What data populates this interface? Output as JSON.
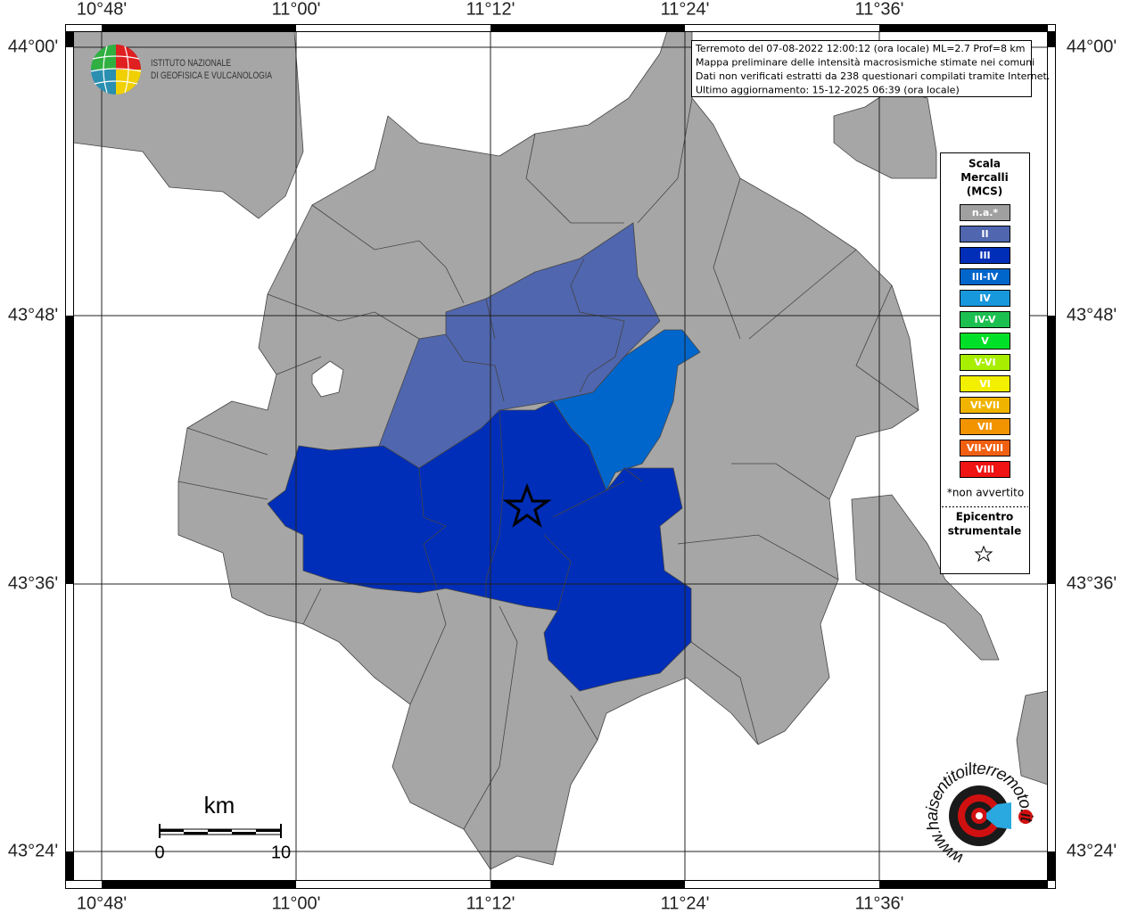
{
  "map": {
    "longitude_labels": [
      "10°48'",
      "11°00'",
      "11°12'",
      "11°24'",
      "11°36'"
    ],
    "latitude_labels": [
      "44°00'",
      "43°48'",
      "43°36'",
      "43°24'"
    ],
    "info_box": [
      "Terremoto del 07-08-2022 12:00:12 (ora locale) ML=2.7 Prof=8 km",
      "Mappa preliminare delle intensità macrosismiche stimate nei comuni",
      "Dati non verificati estratti da 238 questionari compilati tramite Internet.",
      "Ultimo aggiornamento: 15-12-2025 06:39 (ora locale)"
    ],
    "legend": {
      "title": [
        "Scala",
        "Mercalli",
        "(MCS)"
      ],
      "items": [
        {
          "label": "n.a.*",
          "color": "#a0a0a0"
        },
        {
          "label": "II",
          "color": "#5066ae"
        },
        {
          "label": "III",
          "color": "#002eb8"
        },
        {
          "label": "III-IV",
          "color": "#0066cc"
        },
        {
          "label": "IV",
          "color": "#1898dc"
        },
        {
          "label": "IV-V",
          "color": "#1cc050"
        },
        {
          "label": "V",
          "color": "#00e028"
        },
        {
          "label": "V-VI",
          "color": "#a8ee00"
        },
        {
          "label": "VI",
          "color": "#f2f000"
        },
        {
          "label": "VI-VII",
          "color": "#f0b400"
        },
        {
          "label": "VII",
          "color": "#f29400"
        },
        {
          "label": "VII-VIII",
          "color": "#f06010"
        },
        {
          "label": "VIII",
          "color": "#f01414"
        }
      ],
      "note": "*non avvertito",
      "epicenter_label": [
        "Epicentro",
        "strumentale"
      ]
    },
    "scale_bar": {
      "unit": "km",
      "labels": [
        "0",
        "10"
      ]
    },
    "logos": {
      "ingv": [
        "ISTITUTO NAZIONALE",
        "DI GEOFISICA E VULCANOLOGIA"
      ],
      "hai_sentito": "www.haisentitoilterremoto.it"
    }
  }
}
